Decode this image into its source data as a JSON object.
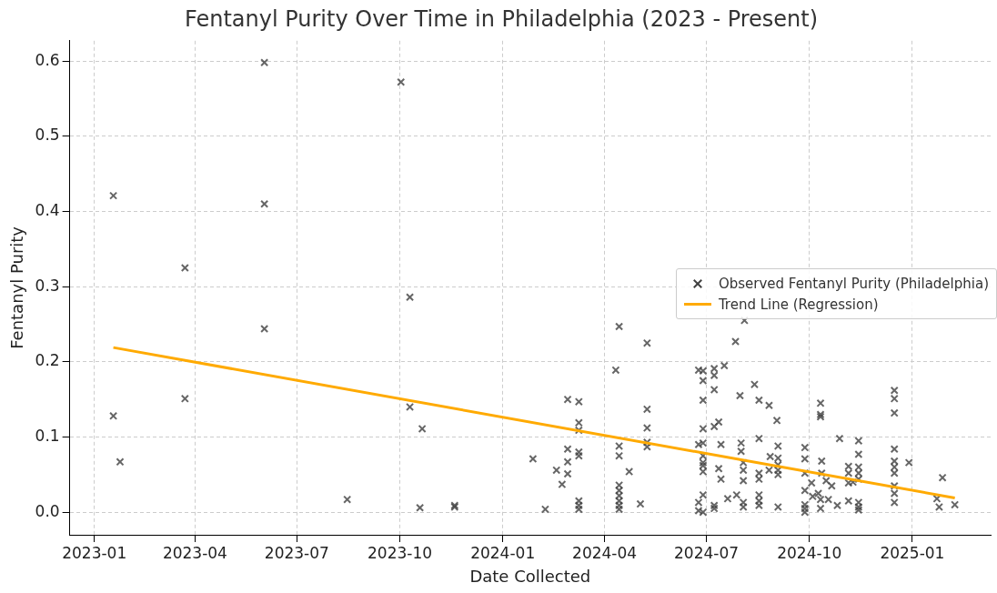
{
  "chart_data": {
    "type": "scatter",
    "title": "Fentanyl Purity Over Time in Philadelphia (2023 - Present)",
    "xlabel": "Date Collected",
    "ylabel": "Fentanyl Purity",
    "xlim": [
      "2022-12-10",
      "2025-03-12"
    ],
    "xticks": [
      "2023-01",
      "2023-04",
      "2023-07",
      "2023-10",
      "2024-01",
      "2024-04",
      "2024-07",
      "2024-10",
      "2025-01"
    ],
    "ylim": [
      -0.03,
      0.627
    ],
    "yticks": [
      {
        "value": 0,
        "label": "0.0"
      },
      0.1,
      0.2,
      0.3,
      0.4,
      0.5,
      0.6
    ],
    "grid": true,
    "legend": "center right",
    "series": [
      {
        "name": "Observed Fentanyl Purity (Philadelphia)",
        "marker": "cross",
        "color": "#404040",
        "x": [
          "2023-01-18",
          "2023-01-18",
          "2023-01-24",
          "2023-03-23",
          "2023-03-23",
          "2023-06-02",
          "2023-06-02",
          "2023-06-02",
          "2023-08-15",
          "2023-10-02",
          "2023-10-10",
          "2023-10-10",
          "2023-10-21",
          "2023-10-19",
          "2023-11-19",
          "2023-11-19",
          "2024-01-28",
          "2024-02-08",
          "2024-02-18",
          "2024-02-23",
          "2024-02-28",
          "2024-02-28",
          "2024-02-28",
          "2024-02-28",
          "2024-03-09",
          "2024-03-09",
          "2024-03-09",
          "2024-03-09",
          "2024-03-09",
          "2024-03-09",
          "2024-03-09",
          "2024-03-09",
          "2024-04-11",
          "2024-04-14",
          "2024-04-14",
          "2024-04-14",
          "2024-04-14",
          "2024-04-14",
          "2024-04-14",
          "2024-04-14",
          "2024-04-14",
          "2024-04-14",
          "2024-04-23",
          "2024-05-03",
          "2024-05-09",
          "2024-05-09",
          "2024-05-09",
          "2024-05-09",
          "2024-05-09",
          "2024-06-24",
          "2024-06-24",
          "2024-06-24",
          "2024-06-24",
          "2024-06-28",
          "2024-06-28",
          "2024-06-28",
          "2024-06-28",
          "2024-06-28",
          "2024-06-28",
          "2024-06-28",
          "2024-06-28",
          "2024-06-28",
          "2024-06-28",
          "2024-06-28",
          "2024-07-08",
          "2024-07-08",
          "2024-07-08",
          "2024-07-08",
          "2024-07-08",
          "2024-07-08",
          "2024-07-12",
          "2024-07-14",
          "2024-07-14",
          "2024-07-12",
          "2024-07-17",
          "2024-07-20",
          "2024-07-27",
          "2024-07-28",
          "2024-07-31",
          "2024-08-01",
          "2024-08-01",
          "2024-08-04",
          "2024-08-03",
          "2024-08-03",
          "2024-08-03",
          "2024-08-03",
          "2024-08-03",
          "2024-08-13",
          "2024-08-17",
          "2024-08-17",
          "2024-08-17",
          "2024-08-17",
          "2024-08-17",
          "2024-08-17",
          "2024-08-17",
          "2024-08-26",
          "2024-08-27",
          "2024-08-26",
          "2024-09-02",
          "2024-09-03",
          "2024-09-03",
          "2024-09-03",
          "2024-09-03",
          "2024-09-03",
          "2024-09-03",
          "2024-09-27",
          "2024-09-27",
          "2024-09-27",
          "2024-09-27",
          "2024-09-27",
          "2024-09-27",
          "2024-09-27",
          "2024-10-03",
          "2024-10-04",
          "2024-10-09",
          "2024-10-11",
          "2024-10-11",
          "2024-10-11",
          "2024-10-11",
          "2024-10-11",
          "2024-10-12",
          "2024-10-12",
          "2024-10-16",
          "2024-10-18",
          "2024-10-21",
          "2024-10-26",
          "2024-10-28",
          "2024-11-05",
          "2024-11-05",
          "2024-11-05",
          "2024-11-05",
          "2024-11-09",
          "2024-11-14",
          "2024-11-14",
          "2024-11-14",
          "2024-11-14",
          "2024-11-14",
          "2024-11-14",
          "2024-11-14",
          "2024-11-14",
          "2024-12-16",
          "2024-12-16",
          "2024-12-16",
          "2024-12-16",
          "2024-12-16",
          "2024-12-16",
          "2024-12-16",
          "2024-12-16",
          "2024-12-16",
          "2024-12-16",
          "2024-12-29",
          "2025-01-23",
          "2025-01-25",
          "2025-01-28",
          "2025-02-08"
        ],
        "values": [
          0.421,
          0.128,
          0.067,
          0.325,
          0.151,
          0.598,
          0.41,
          0.244,
          0.017,
          0.572,
          0.286,
          0.14,
          0.111,
          0.006,
          0.007,
          0.009,
          0.071,
          0.004,
          0.056,
          0.037,
          0.15,
          0.084,
          0.067,
          0.051,
          0.147,
          0.119,
          0.109,
          0.08,
          0.075,
          0.015,
          0.009,
          0.004,
          0.189,
          0.247,
          0.088,
          0.075,
          0.036,
          0.029,
          0.022,
          0.015,
          0.009,
          0.004,
          0.054,
          0.011,
          0.225,
          0.137,
          0.112,
          0.093,
          0.087,
          0.189,
          0.09,
          0.013,
          0.002,
          0.188,
          0.175,
          0.149,
          0.111,
          0.092,
          0.075,
          0.066,
          0.062,
          0.054,
          0.023,
          0.0,
          0.191,
          0.182,
          0.163,
          0.114,
          0.009,
          0.005,
          0.12,
          0.09,
          0.044,
          0.058,
          0.195,
          0.018,
          0.227,
          0.023,
          0.155,
          0.092,
          0.081,
          0.255,
          0.066,
          0.056,
          0.042,
          0.013,
          0.007,
          0.17,
          0.149,
          0.098,
          0.052,
          0.044,
          0.023,
          0.015,
          0.009,
          0.142,
          0.074,
          0.056,
          0.122,
          0.088,
          0.072,
          0.063,
          0.056,
          0.05,
          0.007,
          0.086,
          0.071,
          0.052,
          0.029,
          0.01,
          0.005,
          0.0,
          0.039,
          0.021,
          0.025,
          0.145,
          0.13,
          0.127,
          0.005,
          0.017,
          0.068,
          0.052,
          0.042,
          0.017,
          0.035,
          0.009,
          0.098,
          0.061,
          0.052,
          0.039,
          0.015,
          0.04,
          0.095,
          0.077,
          0.06,
          0.052,
          0.044,
          0.013,
          0.007,
          0.003,
          0.162,
          0.151,
          0.132,
          0.084,
          0.068,
          0.06,
          0.052,
          0.035,
          0.025,
          0.013,
          0.066,
          0.018,
          0.007,
          0.046,
          0.01
        ]
      },
      {
        "name": "Trend Line (Regression)",
        "type": "line",
        "marker": "none",
        "color": "#ffaa00",
        "x": [
          "2023-01-18",
          "2025-02-08"
        ],
        "values": [
          0.219,
          0.019
        ]
      }
    ]
  }
}
